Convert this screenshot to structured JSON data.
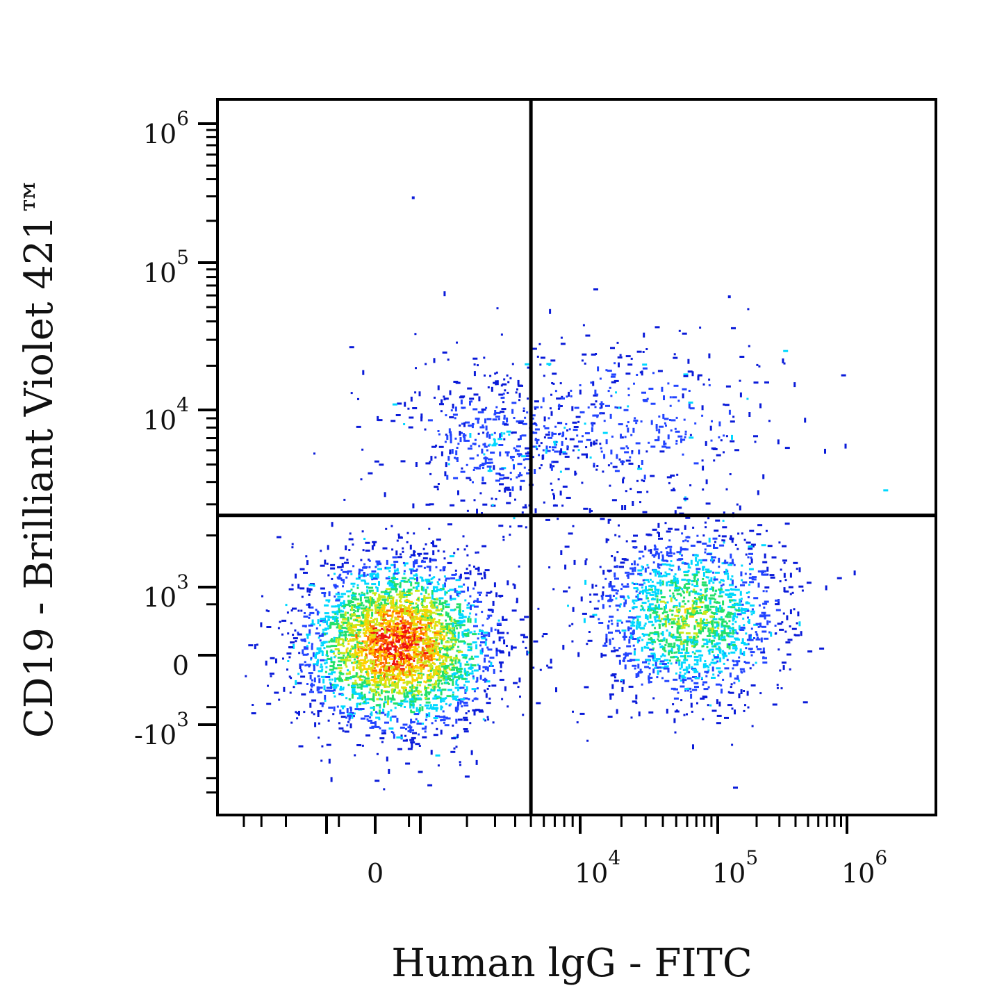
{
  "chart_data": {
    "type": "scatter",
    "plot_style": "flow-cytometry density dot plot",
    "xlabel": "Human lgG - FITC",
    "ylabel": "CD19 - Brilliant Violet 421™",
    "x_scale": "biexponential (log with linear region around 0)",
    "y_scale": "biexponential (log with linear region around 0)",
    "xlim": [
      -6000,
      2000000
    ],
    "ylim": [
      -6000,
      1400000
    ],
    "x_ticks": [
      {
        "value": 0,
        "base": "0",
        "exp": ""
      },
      {
        "value": 10000,
        "base": "10",
        "exp": "4"
      },
      {
        "value": 100000,
        "base": "10",
        "exp": "5"
      },
      {
        "value": 1000000,
        "base": "10",
        "exp": "6"
      }
    ],
    "y_ticks": [
      {
        "value": -1000,
        "base": "-10",
        "exp": "3"
      },
      {
        "value": 0,
        "base": "0",
        "exp": ""
      },
      {
        "value": 1000,
        "base": "10",
        "exp": "3"
      },
      {
        "value": 10000,
        "base": "10",
        "exp": "4"
      },
      {
        "value": 100000,
        "base": "10",
        "exp": "5"
      },
      {
        "value": 1000000,
        "base": "10",
        "exp": "6"
      }
    ],
    "quadrant_gate": {
      "x": 5000,
      "y": 2600
    },
    "populations": [
      {
        "label": "IgG- CD19- (main cluster)",
        "center": {
          "x": 200,
          "y": 50
        },
        "relative_density": "highest"
      },
      {
        "label": "IgG+ CD19- cluster",
        "center": {
          "x": 60000,
          "y": 300
        },
        "relative_density": "medium"
      },
      {
        "label": "CD19+ IgG- scatter",
        "center": {
          "x": 3000,
          "y": 7000
        },
        "relative_density": "low"
      },
      {
        "label": "CD19+ IgG+ scatter",
        "center": {
          "x": 20000,
          "y": 9000
        },
        "relative_density": "low"
      }
    ],
    "density_colors": [
      "#0a1bd9",
      "#2244ff",
      "#00d8ff",
      "#22e06a",
      "#c8e81a",
      "#ffd000",
      "#ff6a00",
      "#ee1010"
    ],
    "grid": false,
    "legend": "none"
  }
}
